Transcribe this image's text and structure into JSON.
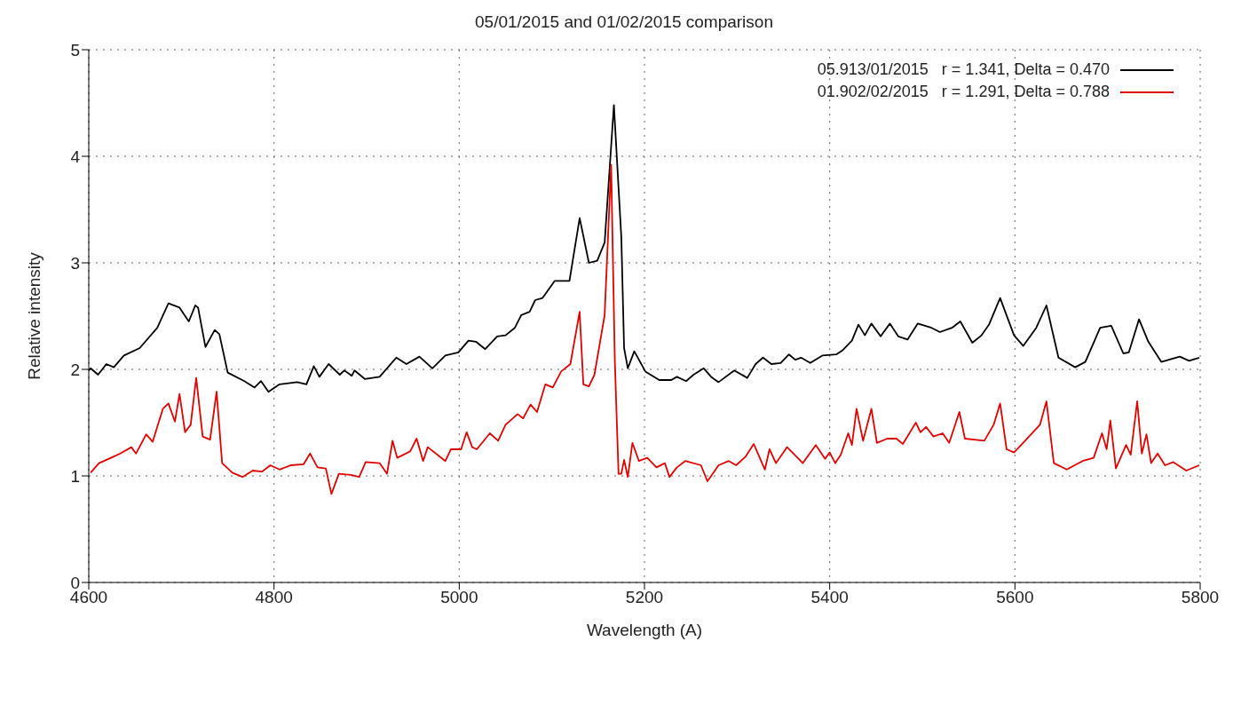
{
  "chart_data": {
    "type": "line",
    "title": "05/01/2015 and 01/02/2015 comparison",
    "xlabel": "Wavelength (A)",
    "ylabel": "Relative intensity",
    "xlim": [
      4600,
      5800
    ],
    "xticks": [
      4600,
      4800,
      5000,
      5200,
      5400,
      5600,
      5800
    ],
    "ylim": [
      0,
      5
    ],
    "yticks": [
      0,
      1,
      2,
      3,
      4,
      5
    ],
    "grid": true,
    "legend": "top right",
    "marker": "none",
    "line_style": "solid",
    "series": [
      {
        "name": "05.913/01/2015   r = 1.341, Delta = 0.470",
        "color": "#000000",
        "x": [
          4600,
          4602,
          4610,
          4619,
          4627,
          4638,
          4655,
          4674,
          4686,
          4698,
          4708,
          4715,
          4718,
          4726,
          4736,
          4741,
          4750,
          4768,
          4779,
          4786,
          4794,
          4806,
          4825,
          4835,
          4843,
          4849,
          4859,
          4871,
          4876,
          4884,
          4887,
          4898,
          4914,
          4932,
          4943,
          4957,
          4971,
          4985,
          4999,
          5010,
          5018,
          5028,
          5041,
          5050,
          5060,
          5067,
          5076,
          5082,
          5090,
          5103,
          5119,
          5130,
          5140,
          5149,
          5157,
          5167,
          5175,
          5178,
          5182,
          5189,
          5201,
          5216,
          5229,
          5235,
          5245,
          5253,
          5264,
          5272,
          5280,
          5297,
          5311,
          5320,
          5328,
          5337,
          5347,
          5356,
          5363,
          5369,
          5379,
          5392,
          5407,
          5414,
          5424,
          5431,
          5438,
          5445,
          5455,
          5465,
          5474,
          5484,
          5495,
          5510,
          5519,
          5532,
          5541,
          5554,
          5564,
          5572,
          5584,
          5599,
          5609,
          5623,
          5634,
          5647,
          5665,
          5676,
          5692,
          5704,
          5717,
          5723,
          5734,
          5744,
          5758,
          5778,
          5788,
          5799
        ],
        "values": [
          1.99,
          2.01,
          1.95,
          2.05,
          2.02,
          2.13,
          2.2,
          2.39,
          2.62,
          2.58,
          2.45,
          2.6,
          2.58,
          2.21,
          2.37,
          2.33,
          1.97,
          1.89,
          1.83,
          1.89,
          1.79,
          1.86,
          1.88,
          1.86,
          2.03,
          1.93,
          2.05,
          1.95,
          1.99,
          1.94,
          1.99,
          1.91,
          1.93,
          2.11,
          2.05,
          2.12,
          2.01,
          2.13,
          2.16,
          2.27,
          2.26,
          2.19,
          2.31,
          2.32,
          2.39,
          2.51,
          2.54,
          2.65,
          2.67,
          2.83,
          2.83,
          3.42,
          3.0,
          3.02,
          3.19,
          4.48,
          3.24,
          2.2,
          2.01,
          2.17,
          1.98,
          1.9,
          1.9,
          1.93,
          1.89,
          1.95,
          2.01,
          1.93,
          1.88,
          1.99,
          1.92,
          2.05,
          2.11,
          2.05,
          2.06,
          2.14,
          2.09,
          2.11,
          2.06,
          2.13,
          2.14,
          2.18,
          2.27,
          2.42,
          2.32,
          2.43,
          2.31,
          2.43,
          2.31,
          2.28,
          2.43,
          2.39,
          2.35,
          2.39,
          2.45,
          2.25,
          2.32,
          2.42,
          2.67,
          2.32,
          2.22,
          2.39,
          2.6,
          2.11,
          2.02,
          2.07,
          2.39,
          2.41,
          2.15,
          2.16,
          2.47,
          2.26,
          2.07,
          2.12,
          2.08,
          2.11
        ]
      },
      {
        "name": "01.902/02/2015   r = 1.291, Delta = 0.788",
        "color": "#e00000",
        "x": [
          4602,
          4611,
          4624,
          4634,
          4646,
          4651,
          4662,
          4669,
          4680,
          4686,
          4693,
          4698,
          4704,
          4710,
          4716,
          4723,
          4731,
          4738,
          4744,
          4755,
          4766,
          4777,
          4787,
          4796,
          4806,
          4818,
          4832,
          4839,
          4847,
          4856,
          4862,
          4870,
          4883,
          4892,
          4899,
          4914,
          4922,
          4928,
          4933,
          4947,
          4954,
          4961,
          4966,
          4985,
          4991,
          5002,
          5008,
          5014,
          5019,
          5033,
          5042,
          5050,
          5063,
          5069,
          5077,
          5084,
          5093,
          5101,
          5110,
          5120,
          5130,
          5134,
          5140,
          5146,
          5157,
          5164,
          5168,
          5172,
          5175,
          5178,
          5182,
          5187,
          5194,
          5203,
          5213,
          5222,
          5227,
          5235,
          5244,
          5261,
          5268,
          5280,
          5291,
          5299,
          5309,
          5318,
          5330,
          5335,
          5342,
          5354,
          5371,
          5385,
          5395,
          5400,
          5406,
          5412,
          5420,
          5424,
          5429,
          5436,
          5445,
          5451,
          5462,
          5472,
          5479,
          5493,
          5498,
          5504,
          5512,
          5522,
          5529,
          5540,
          5546,
          5567,
          5577,
          5584,
          5591,
          5599,
          5611,
          5627,
          5634,
          5642,
          5656,
          5673,
          5685,
          5694,
          5699,
          5703,
          5709,
          5720,
          5725,
          5732,
          5737,
          5742,
          5747,
          5754,
          5762,
          5771,
          5785,
          5799
        ],
        "values": [
          1.03,
          1.12,
          1.17,
          1.21,
          1.27,
          1.21,
          1.39,
          1.32,
          1.63,
          1.68,
          1.51,
          1.77,
          1.41,
          1.48,
          1.92,
          1.37,
          1.34,
          1.79,
          1.12,
          1.03,
          0.99,
          1.05,
          1.04,
          1.1,
          1.06,
          1.1,
          1.11,
          1.21,
          1.08,
          1.07,
          0.83,
          1.02,
          1.01,
          0.99,
          1.13,
          1.12,
          1.02,
          1.33,
          1.17,
          1.23,
          1.35,
          1.14,
          1.27,
          1.14,
          1.25,
          1.25,
          1.41,
          1.27,
          1.25,
          1.4,
          1.33,
          1.48,
          1.58,
          1.54,
          1.67,
          1.6,
          1.86,
          1.83,
          1.98,
          2.05,
          2.54,
          1.86,
          1.84,
          1.95,
          2.51,
          3.92,
          2.08,
          1.02,
          1.02,
          1.15,
          0.99,
          1.31,
          1.14,
          1.17,
          1.08,
          1.12,
          0.99,
          1.08,
          1.14,
          1.1,
          0.95,
          1.1,
          1.14,
          1.1,
          1.18,
          1.3,
          1.06,
          1.25,
          1.12,
          1.27,
          1.12,
          1.29,
          1.16,
          1.22,
          1.12,
          1.2,
          1.4,
          1.29,
          1.63,
          1.33,
          1.63,
          1.31,
          1.35,
          1.35,
          1.3,
          1.5,
          1.41,
          1.46,
          1.37,
          1.4,
          1.31,
          1.6,
          1.35,
          1.33,
          1.48,
          1.68,
          1.25,
          1.22,
          1.33,
          1.48,
          1.7,
          1.12,
          1.06,
          1.14,
          1.17,
          1.4,
          1.25,
          1.52,
          1.07,
          1.29,
          1.2,
          1.7,
          1.21,
          1.39,
          1.12,
          1.21,
          1.1,
          1.13,
          1.05,
          1.1
        ]
      }
    ]
  }
}
